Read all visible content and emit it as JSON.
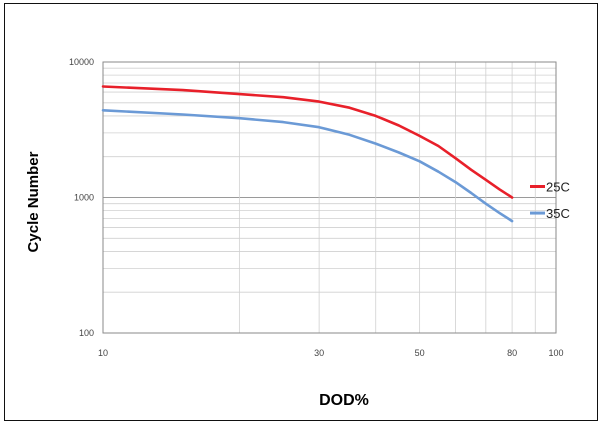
{
  "chart_data": {
    "type": "line",
    "xlabel": "DOD%",
    "ylabel": "Cycle Number",
    "x_scale": "log",
    "y_scale": "log",
    "xlim": [
      10,
      100
    ],
    "ylim": [
      100,
      10000
    ],
    "x_tick_labels": [
      {
        "value": 10,
        "label": "10"
      },
      {
        "value": 30,
        "label": "30"
      },
      {
        "value": 50,
        "label": "50"
      },
      {
        "value": 80,
        "label": "80"
      },
      {
        "value": 100,
        "label": "100"
      }
    ],
    "y_tick_labels": [
      {
        "value": 10000,
        "label": "10000"
      },
      {
        "value": 1000,
        "label": "1000"
      },
      {
        "value": 100,
        "label": "100"
      }
    ],
    "grid": true,
    "legend_position": "right",
    "series": [
      {
        "name": "25C",
        "color": "#e8202a",
        "x": [
          10,
          15,
          20,
          25,
          30,
          35,
          40,
          45,
          50,
          55,
          60,
          65,
          70,
          75,
          80
        ],
        "y": [
          6600,
          6200,
          5800,
          5500,
          5100,
          4600,
          4000,
          3400,
          2850,
          2400,
          1950,
          1600,
          1350,
          1150,
          1000
        ]
      },
      {
        "name": "35C",
        "color": "#6b9ad6",
        "x": [
          10,
          15,
          20,
          25,
          30,
          35,
          40,
          45,
          50,
          55,
          60,
          65,
          70,
          75,
          80
        ],
        "y": [
          4400,
          4100,
          3850,
          3600,
          3300,
          2900,
          2500,
          2150,
          1850,
          1550,
          1300,
          1080,
          900,
          770,
          670
        ]
      }
    ]
  }
}
